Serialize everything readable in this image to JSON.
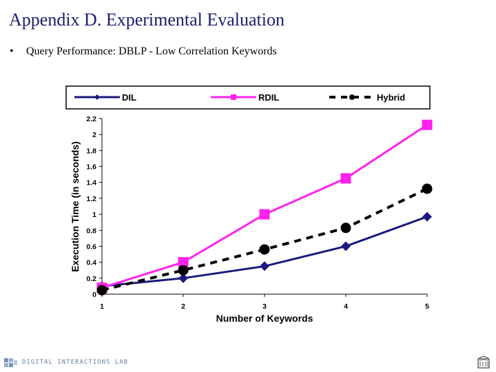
{
  "slide": {
    "title": "Appendix D. Experimental Evaluation",
    "bullet": "Query Performance: DBLP - Low Correlation Keywords",
    "footer_label": "DIGITAL INTERACTIONS LAB"
  },
  "chart_data": {
    "type": "line",
    "title": "",
    "xlabel": "Number of Keywords",
    "ylabel": "Execution Time (in seconds)",
    "categories": [
      1,
      2,
      3,
      4,
      5
    ],
    "xticks": [
      "1",
      "2",
      "3",
      "4",
      "5"
    ],
    "ylim": [
      0,
      2.2
    ],
    "yticks": [
      "0",
      "0.2",
      "0.4",
      "0.6",
      "0.8",
      "1",
      "1.2",
      "1.4",
      "1.6",
      "1.8",
      "2",
      "2.2"
    ],
    "ytick_values": [
      0,
      0.2,
      0.4,
      0.6,
      0.8,
      1.0,
      1.2,
      1.4,
      1.6,
      1.8,
      2.0,
      2.2
    ],
    "legend_position": "top",
    "series": [
      {
        "name": "DIL",
        "marker": "diamond",
        "line": "solid",
        "color": "#1a1a7e",
        "values": [
          0.1,
          0.2,
          0.35,
          0.6,
          0.97
        ]
      },
      {
        "name": "RDIL",
        "marker": "square",
        "line": "solid",
        "color": "#ff22ee",
        "values": [
          0.08,
          0.4,
          1.0,
          1.45,
          2.12
        ]
      },
      {
        "name": "Hybrid",
        "marker": "circle",
        "line": "dashed",
        "color": "#000000",
        "values": [
          0.05,
          0.3,
          0.56,
          0.83,
          1.32
        ]
      }
    ]
  }
}
